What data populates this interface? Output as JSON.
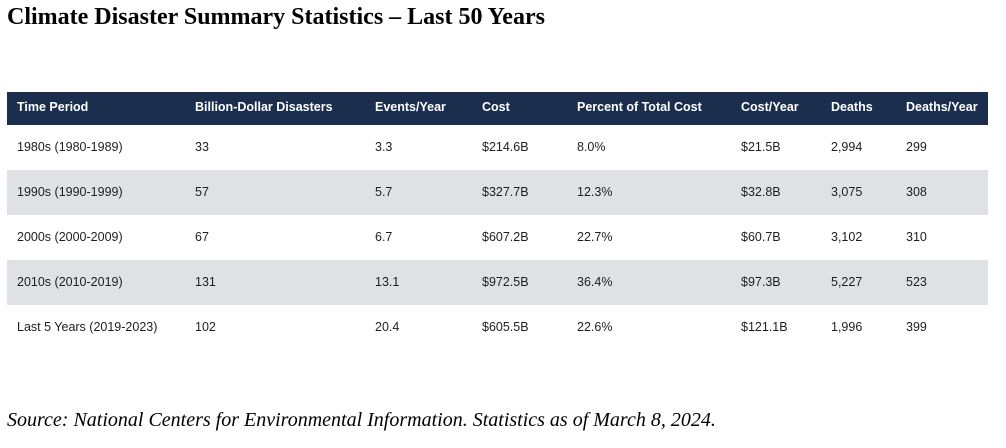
{
  "title": "Climate Disaster Summary Statistics – Last 50 Years",
  "table": {
    "headers": [
      "Time Period",
      "Billion-Dollar Disasters",
      "Events/Year",
      "Cost",
      "Percent of Total Cost",
      "Cost/Year",
      "Deaths",
      "Deaths/Year"
    ],
    "rows": [
      [
        "1980s (1980-1989)",
        "33",
        "3.3",
        "$214.6B",
        "8.0%",
        "$21.5B",
        "2,994",
        "299"
      ],
      [
        "1990s (1990-1999)",
        "57",
        "5.7",
        "$327.7B",
        "12.3%",
        "$32.8B",
        "3,075",
        "308"
      ],
      [
        "2000s (2000-2009)",
        "67",
        "6.7",
        "$607.2B",
        "22.7%",
        "$60.7B",
        "3,102",
        "310"
      ],
      [
        "2010s (2010-2019)",
        "131",
        "13.1",
        "$972.5B",
        "36.4%",
        "$97.3B",
        "5,227",
        "523"
      ],
      [
        "Last 5 Years (2019-2023)",
        "102",
        "20.4",
        "$605.5B",
        "22.6%",
        "$121.1B",
        "1,996",
        "399"
      ]
    ]
  },
  "source": "Source: National Centers for Environmental Information. Statistics as of March 8, 2024.",
  "colors": {
    "header_background": "#1c2e4e",
    "header_text": "#ffffff",
    "shaded_row": "#e0e1e5"
  }
}
